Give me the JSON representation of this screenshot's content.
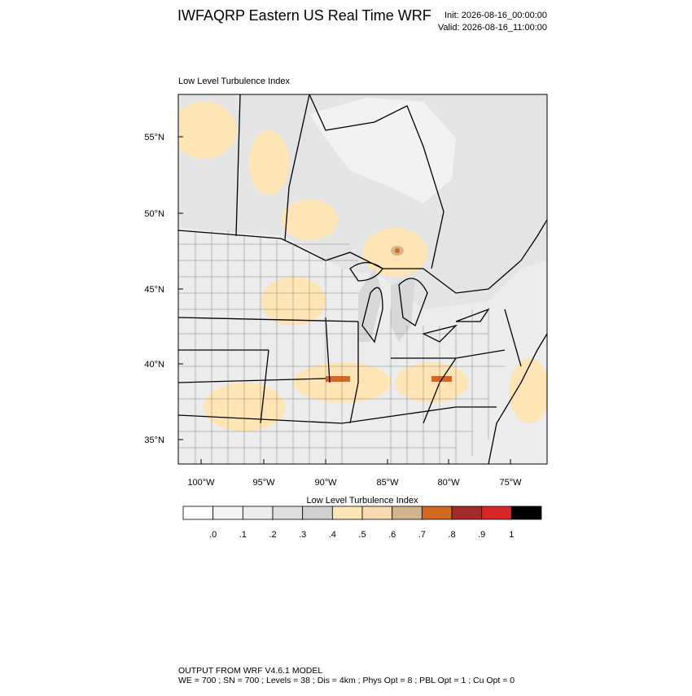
{
  "header": {
    "title": "IWFAQRP Eastern US Real Time WRF",
    "init": "Init: 2026-08-16_00:00:00",
    "valid": "Valid: 2026-08-16_11:00:00"
  },
  "map": {
    "subtitle": "Low Level Turbulence Index",
    "lat_labels": [
      "55°N",
      "50°N",
      "45°N",
      "40°N",
      "35°N"
    ],
    "lon_labels": [
      "100°W",
      "95°W",
      "90°W",
      "85°W",
      "80°W",
      "75°W"
    ]
  },
  "colorbar": {
    "label": "Low Level Turbulence Index",
    "colors": [
      "#ffffff",
      "#f5f5f5",
      "#ececec",
      "#dedede",
      "#d0d0d0",
      "#ffe4b5",
      "#f5dab0",
      "#d2b48c",
      "#d2691e",
      "#a52a2a",
      "#d62828",
      "#000000"
    ],
    "tick_labels": [
      ".0",
      ".1",
      ".2",
      ".3",
      ".4",
      ".5",
      ".6",
      ".7",
      ".8",
      ".9",
      "1"
    ]
  },
  "footer": {
    "line1": "OUTPUT FROM WRF V4.6.1 MODEL",
    "line2": "WE = 700 ; SN = 700 ; Levels = 38 ; Dis = 4km ; Phys Opt = 8 ; PBL Opt = 1 ; Cu Opt = 0"
  }
}
